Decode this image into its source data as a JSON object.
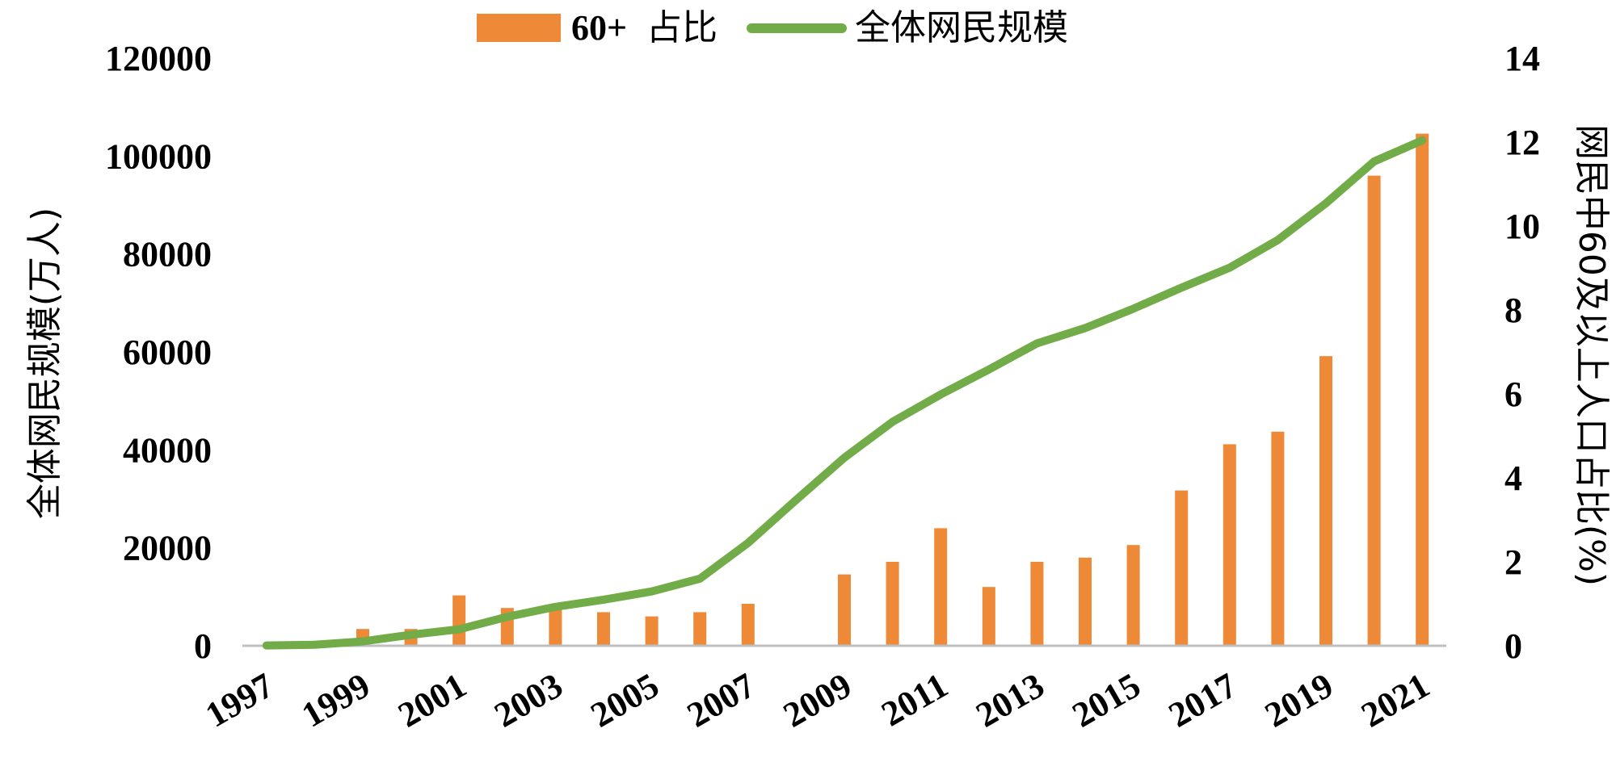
{
  "chart_data": {
    "type": "bar+line",
    "title": "",
    "legend": {
      "placement": "top-center",
      "items": [
        {
          "label_prefix": "60+",
          "label_suffix": "占比",
          "kind": "bar",
          "color": "#ED8937"
        },
        {
          "label": "全体网民规模",
          "kind": "line",
          "color": "#72AC48"
        }
      ]
    },
    "x_tick_labels": [
      "1997",
      "1999",
      "2001",
      "2003",
      "2005",
      "2007",
      "2009",
      "2011",
      "2013",
      "2015",
      "2017",
      "2019",
      "2021"
    ],
    "x_tick_years": [
      1997,
      1999,
      2001,
      2003,
      2005,
      2007,
      2009,
      2011,
      2013,
      2015,
      2017,
      2019,
      2021
    ],
    "y_left": {
      "label": "全体网民规模(万人)",
      "range": [
        0,
        120000
      ],
      "ticks": [
        0,
        20000,
        40000,
        60000,
        80000,
        100000,
        120000
      ],
      "tick_labels": [
        "0",
        "20000",
        "40000",
        "60000",
        "80000",
        "100000",
        "120000"
      ]
    },
    "y_right": {
      "label": "网民中60及以上人口占比(%)",
      "range": [
        0,
        14
      ],
      "ticks": [
        0,
        2,
        4,
        6,
        8,
        10,
        12,
        14
      ],
      "tick_labels": [
        "0",
        "2",
        "4",
        "6",
        "8",
        "10",
        "12",
        "14"
      ]
    },
    "grid": false,
    "series": [
      {
        "name": "60+占比",
        "type": "bar",
        "axis": "right",
        "color": "#ED8937",
        "x": [
          1999,
          2000,
          2001,
          2002,
          2003,
          2004,
          2005,
          2006,
          2007,
          2009,
          2010,
          2011,
          2012,
          2013,
          2014,
          2015,
          2016,
          2017,
          2018,
          2019,
          2020,
          2021
        ],
        "values": [
          0.4,
          0.4,
          1.2,
          0.9,
          0.9,
          0.8,
          0.7,
          0.8,
          1.0,
          1.7,
          2.0,
          2.8,
          1.4,
          2.0,
          2.1,
          2.4,
          3.7,
          4.8,
          5.1,
          6.9,
          11.2,
          12.2
        ]
      },
      {
        "name": "全体网民规模",
        "type": "line",
        "axis": "left",
        "color": "#72AC48",
        "x": [
          1997,
          1998,
          1999,
          2000,
          2001,
          2002,
          2003,
          2004,
          2005,
          2006,
          2007,
          2008,
          2009,
          2010,
          2011,
          2012,
          2013,
          2014,
          2015,
          2016,
          2017,
          2018,
          2019,
          2020,
          2021
        ],
        "values": [
          62,
          210,
          890,
          2250,
          3370,
          5910,
          7950,
          9400,
          11100,
          13700,
          21000,
          29800,
          38400,
          45730,
          51310,
          56400,
          61758,
          64875,
          68826,
          73125,
          77198,
          82851,
          90359,
          98899,
          103195
        ]
      }
    ]
  }
}
